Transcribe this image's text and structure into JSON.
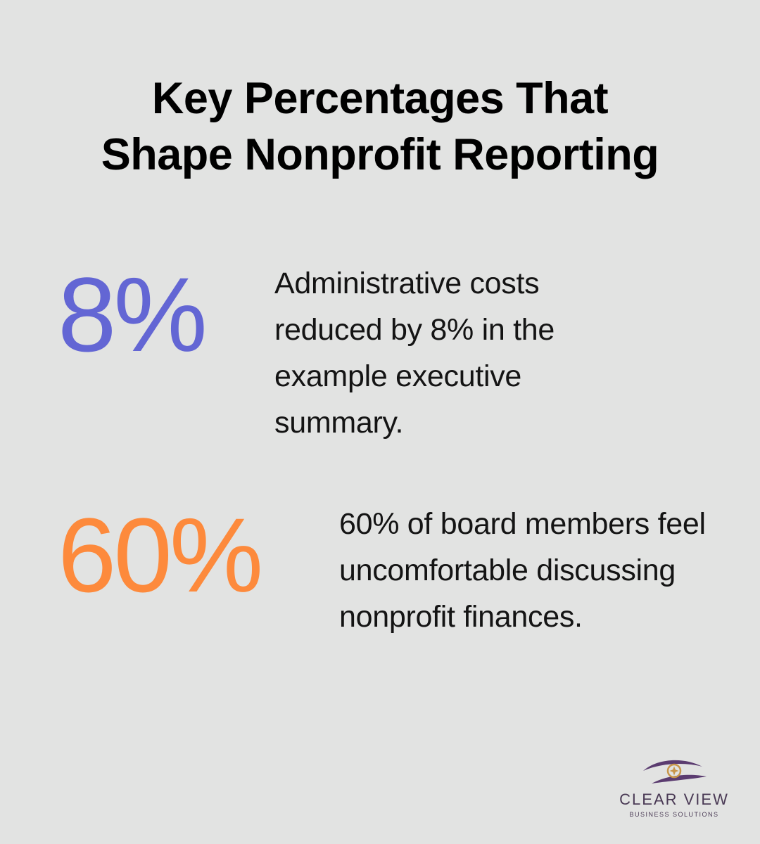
{
  "title": {
    "line1": "Key Percentages That",
    "line2": "Shape Nonprofit Reporting"
  },
  "stats": [
    {
      "value": "8%",
      "description": "Administrative costs reduced by 8% in the example executive summary.",
      "color": "#6366d4"
    },
    {
      "value": "60%",
      "description": "60% of board members feel uncomfortable discussing nonprofit finances.",
      "color": "#fd8a3c"
    }
  ],
  "logo": {
    "name": "CLEAR VIEW",
    "tagline": "BUSINESS SOLUTIONS",
    "icon": "eye-star-icon",
    "name_color": "#4a3a55",
    "accent_color": "#c9964a",
    "swoosh_color": "#5b3c70"
  }
}
